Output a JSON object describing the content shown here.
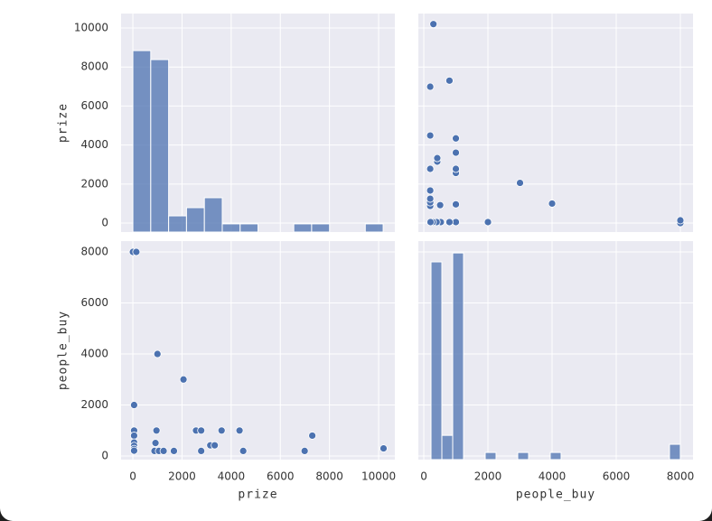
{
  "chart_data": [
    {
      "type": "histogram",
      "ylabel": "prize",
      "color": "#4c72b0",
      "grid": true,
      "xlim": [
        -480,
        10660
      ],
      "ylim": [
        -460,
        10740
      ],
      "xticks": [
        0,
        2000,
        4000,
        6000,
        8000,
        10000
      ],
      "yticks": [
        0,
        2000,
        4000,
        6000,
        8000,
        10000
      ],
      "bins": [
        0,
        727,
        1455,
        2182,
        2910,
        3637,
        4365,
        5092,
        5819,
        6547,
        7274,
        8002,
        8729,
        9457,
        10184
      ],
      "values": [
        8840,
        8380,
        370,
        790,
        1300,
        -40,
        -40,
        -460,
        -460,
        -40,
        -40,
        -460,
        -460,
        -40
      ]
    },
    {
      "type": "scatter",
      "color": "#4c72b0",
      "grid": true,
      "xlim": [
        -170,
        8395
      ],
      "ylim": [
        -460,
        10740
      ],
      "xticks": [
        0,
        2000,
        4000,
        6000,
        8000
      ],
      "yticks": [
        0,
        2000,
        4000,
        6000,
        8000,
        10000
      ],
      "x": [
        8000,
        8000,
        4000,
        3000,
        2000,
        1000,
        800,
        530,
        400,
        280,
        210,
        1000,
        510,
        200,
        200,
        200,
        200,
        1000,
        1000,
        200,
        420,
        420,
        1000,
        1000,
        200,
        200,
        800,
        300
      ],
      "y": [
        0,
        140,
        1000,
        2060,
        50,
        50,
        50,
        50,
        50,
        50,
        50,
        960,
        920,
        880,
        1060,
        1250,
        1670,
        2570,
        2780,
        2780,
        3150,
        3330,
        3610,
        4340,
        4490,
        6990,
        7300,
        10200
      ]
    },
    {
      "type": "scatter",
      "xlabel": "prize",
      "ylabel": "people_buy",
      "color": "#4c72b0",
      "grid": true,
      "xlim": [
        -480,
        10660
      ],
      "ylim": [
        -140,
        8425
      ],
      "xticks": [
        0,
        2000,
        4000,
        6000,
        8000,
        10000
      ],
      "yticks": [
        0,
        2000,
        4000,
        6000,
        8000
      ],
      "x": [
        0,
        140,
        1000,
        2060,
        50,
        50,
        50,
        50,
        50,
        50,
        50,
        960,
        920,
        880,
        1060,
        1250,
        1670,
        2570,
        2780,
        2780,
        3150,
        3330,
        3610,
        4340,
        4490,
        6990,
        7300,
        10200
      ],
      "y": [
        8000,
        8000,
        4000,
        3000,
        2000,
        1000,
        800,
        530,
        400,
        280,
        210,
        1000,
        510,
        200,
        200,
        200,
        200,
        1000,
        1000,
        200,
        420,
        420,
        1000,
        1000,
        200,
        200,
        800,
        300
      ]
    },
    {
      "type": "histogram",
      "xlabel": "people_buy",
      "color": "#4c72b0",
      "grid": true,
      "xlim": [
        -170,
        8395
      ],
      "ylim": [
        -140,
        8425
      ],
      "xticks": [
        0,
        2000,
        4000,
        6000,
        8000
      ],
      "yticks": [
        0,
        2000,
        4000,
        6000,
        8000
      ],
      "bins": [
        225,
        563,
        901,
        1239,
        1577,
        1915,
        2253,
        2591,
        2929,
        3267,
        3605,
        3943,
        4281,
        4619,
        4957,
        5295,
        5633,
        5971,
        6309,
        6647,
        6985,
        7323,
        7661,
        7999
      ],
      "values": [
        7610,
        810,
        7960,
        -140,
        -140,
        140,
        -140,
        -140,
        140,
        -140,
        -140,
        140,
        -140,
        -140,
        -140,
        -140,
        -140,
        -140,
        -140,
        -140,
        -140,
        -140,
        460
      ]
    }
  ]
}
